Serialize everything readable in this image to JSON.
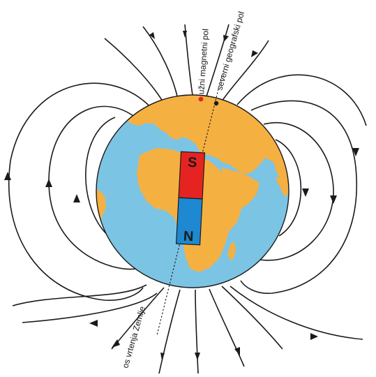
{
  "labels": {
    "magnetic_pole": "južni magnetni pol",
    "geographic_pole": "severni geografski pol",
    "rotation_axis": "os vrtenja Zemlje"
  },
  "magnet": {
    "top_letter": "S",
    "bottom_letter": "N"
  },
  "colors": {
    "ocean": "#7cc4e4",
    "land": "#f5b042",
    "magnet_top": "#e52421",
    "magnet_bottom": "#1e88d0",
    "magnetic_pole_dot": "#e52421",
    "field_lines": "#1a1a1a"
  }
}
